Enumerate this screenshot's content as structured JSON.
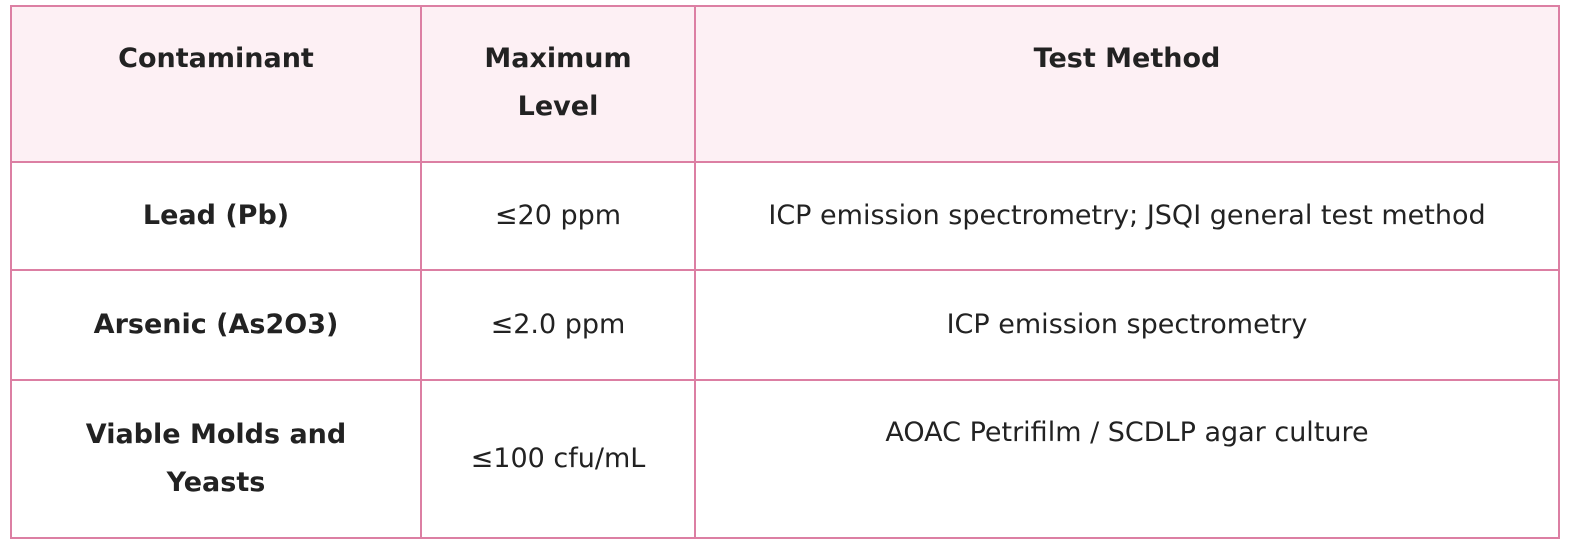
{
  "table": {
    "header": [
      "Contaminant",
      "Maximum Level",
      "Test Method"
    ],
    "rows": [
      [
        "Lead (Pb)",
        "≤20 ppm",
        "ICP emission spectrometry; JSQI general test method"
      ],
      [
        "Arsenic (As2O3)",
        "≤2.0 ppm",
        "ICP emission spectrometry"
      ],
      [
        "Viable Molds and Yeasts",
        "≤100 cfu/mL",
        "AOAC Petrifilm / SCDLP agar culture"
      ]
    ]
  }
}
